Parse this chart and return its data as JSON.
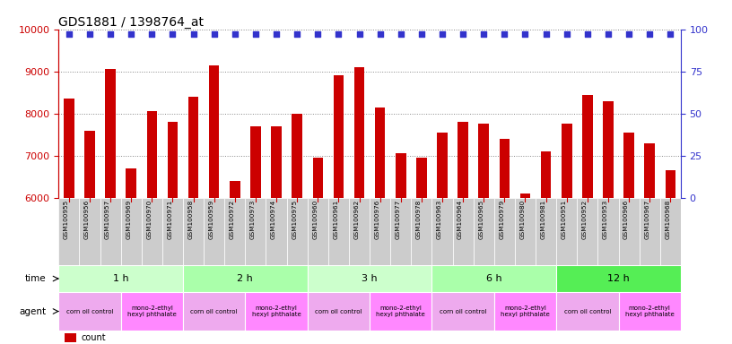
{
  "title": "GDS1881 / 1398764_at",
  "samples": [
    "GSM100955",
    "GSM100956",
    "GSM100957",
    "GSM100969",
    "GSM100970",
    "GSM100971",
    "GSM100958",
    "GSM100959",
    "GSM100972",
    "GSM100973",
    "GSM100974",
    "GSM100975",
    "GSM100960",
    "GSM100961",
    "GSM100962",
    "GSM100976",
    "GSM100977",
    "GSM100978",
    "GSM100963",
    "GSM100964",
    "GSM100965",
    "GSM100979",
    "GSM100980",
    "GSM100981",
    "GSM100951",
    "GSM100952",
    "GSM100953",
    "GSM100966",
    "GSM100967",
    "GSM100968"
  ],
  "counts": [
    8350,
    7600,
    9050,
    6700,
    8050,
    7800,
    8400,
    9150,
    6400,
    7700,
    7700,
    8000,
    6950,
    8900,
    9100,
    8150,
    7050,
    6950,
    7550,
    7800,
    7750,
    7400,
    6100,
    7100,
    7750,
    8450,
    8300,
    7550,
    7300,
    6650
  ],
  "bar_color": "#cc0000",
  "percentile_color": "#3333cc",
  "ylim_left": [
    6000,
    10000
  ],
  "ylim_right": [
    0,
    100
  ],
  "yticks_left": [
    6000,
    7000,
    8000,
    9000,
    10000
  ],
  "yticks_right": [
    0,
    25,
    50,
    75,
    100
  ],
  "left_axis_color": "#cc0000",
  "right_axis_color": "#3333cc",
  "grid_color": "#888888",
  "background_color": "#ffffff",
  "tick_label_bg": "#cccccc",
  "time_groups": [
    {
      "label": "1 h",
      "start": 0,
      "end": 6,
      "color": "#ccffcc"
    },
    {
      "label": "2 h",
      "start": 6,
      "end": 12,
      "color": "#aaffaa"
    },
    {
      "label": "3 h",
      "start": 12,
      "end": 18,
      "color": "#ccffcc"
    },
    {
      "label": "6 h",
      "start": 18,
      "end": 24,
      "color": "#aaffaa"
    },
    {
      "label": "12 h",
      "start": 24,
      "end": 30,
      "color": "#55ee55"
    }
  ],
  "agent_groups": [
    {
      "label": "corn oil control",
      "start": 0,
      "end": 3,
      "color": "#eeaaee"
    },
    {
      "label": "mono-2-ethyl\nhexyl phthalate",
      "start": 3,
      "end": 6,
      "color": "#ff88ff"
    },
    {
      "label": "corn oil control",
      "start": 6,
      "end": 9,
      "color": "#eeaaee"
    },
    {
      "label": "mono-2-ethyl\nhexyl phthalate",
      "start": 9,
      "end": 12,
      "color": "#ff88ff"
    },
    {
      "label": "corn oil control",
      "start": 12,
      "end": 15,
      "color": "#eeaaee"
    },
    {
      "label": "mono-2-ethyl\nhexyl phthalate",
      "start": 15,
      "end": 18,
      "color": "#ff88ff"
    },
    {
      "label": "corn oil control",
      "start": 18,
      "end": 21,
      "color": "#eeaaee"
    },
    {
      "label": "mono-2-ethyl\nhexyl phthalate",
      "start": 21,
      "end": 24,
      "color": "#ff88ff"
    },
    {
      "label": "corn oil control",
      "start": 24,
      "end": 27,
      "color": "#eeaaee"
    },
    {
      "label": "mono-2-ethyl\nhexyl phthalate",
      "start": 27,
      "end": 30,
      "color": "#ff88ff"
    }
  ],
  "n_samples": 30,
  "bar_width": 0.5
}
